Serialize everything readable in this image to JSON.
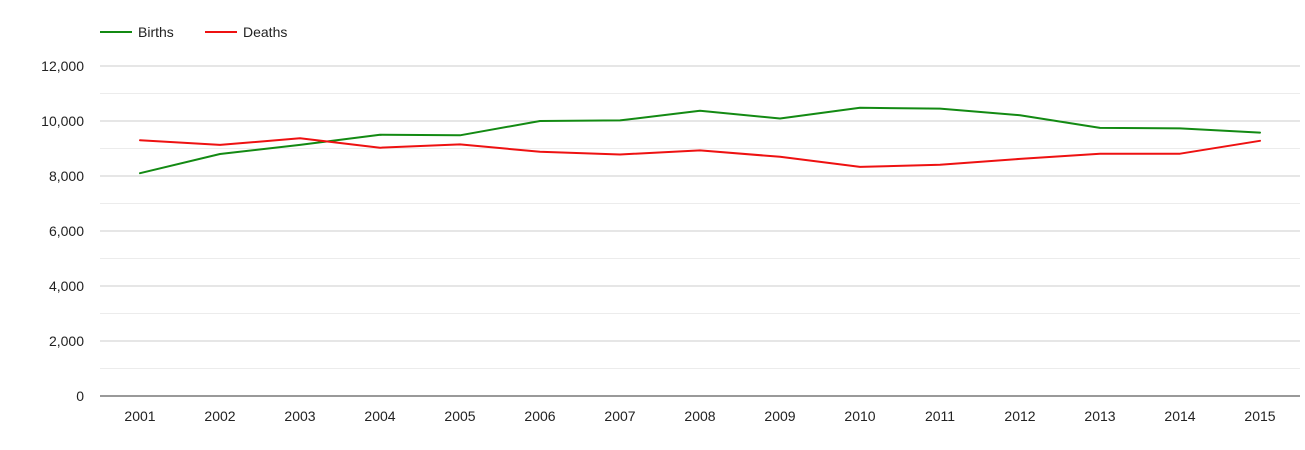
{
  "chart_data": {
    "type": "line",
    "title": "",
    "xlabel": "",
    "ylabel": "",
    "x": [
      "2001",
      "2002",
      "2003",
      "2004",
      "2005",
      "2006",
      "2007",
      "2008",
      "2009",
      "2010",
      "2011",
      "2012",
      "2013",
      "2014",
      "2015"
    ],
    "ylim": [
      0,
      12000
    ],
    "yticks": [
      0,
      2000,
      4000,
      6000,
      8000,
      10000,
      12000
    ],
    "ytick_labels": [
      "0",
      "2,000",
      "4,000",
      "6,000",
      "8,000",
      "10,000",
      "12,000"
    ],
    "grid": true,
    "legend_position": "top-left",
    "series": [
      {
        "name": "Births",
        "color": "#138a13",
        "values": [
          8100,
          8800,
          9130,
          9500,
          9480,
          10000,
          10020,
          10370,
          10090,
          10480,
          10450,
          10210,
          9750,
          9730,
          9580
        ]
      },
      {
        "name": "Deaths",
        "color": "#ee1111",
        "values": [
          9300,
          9130,
          9370,
          9030,
          9150,
          8880,
          8780,
          8930,
          8700,
          8330,
          8410,
          8620,
          8810,
          8810,
          9280
        ]
      }
    ]
  }
}
